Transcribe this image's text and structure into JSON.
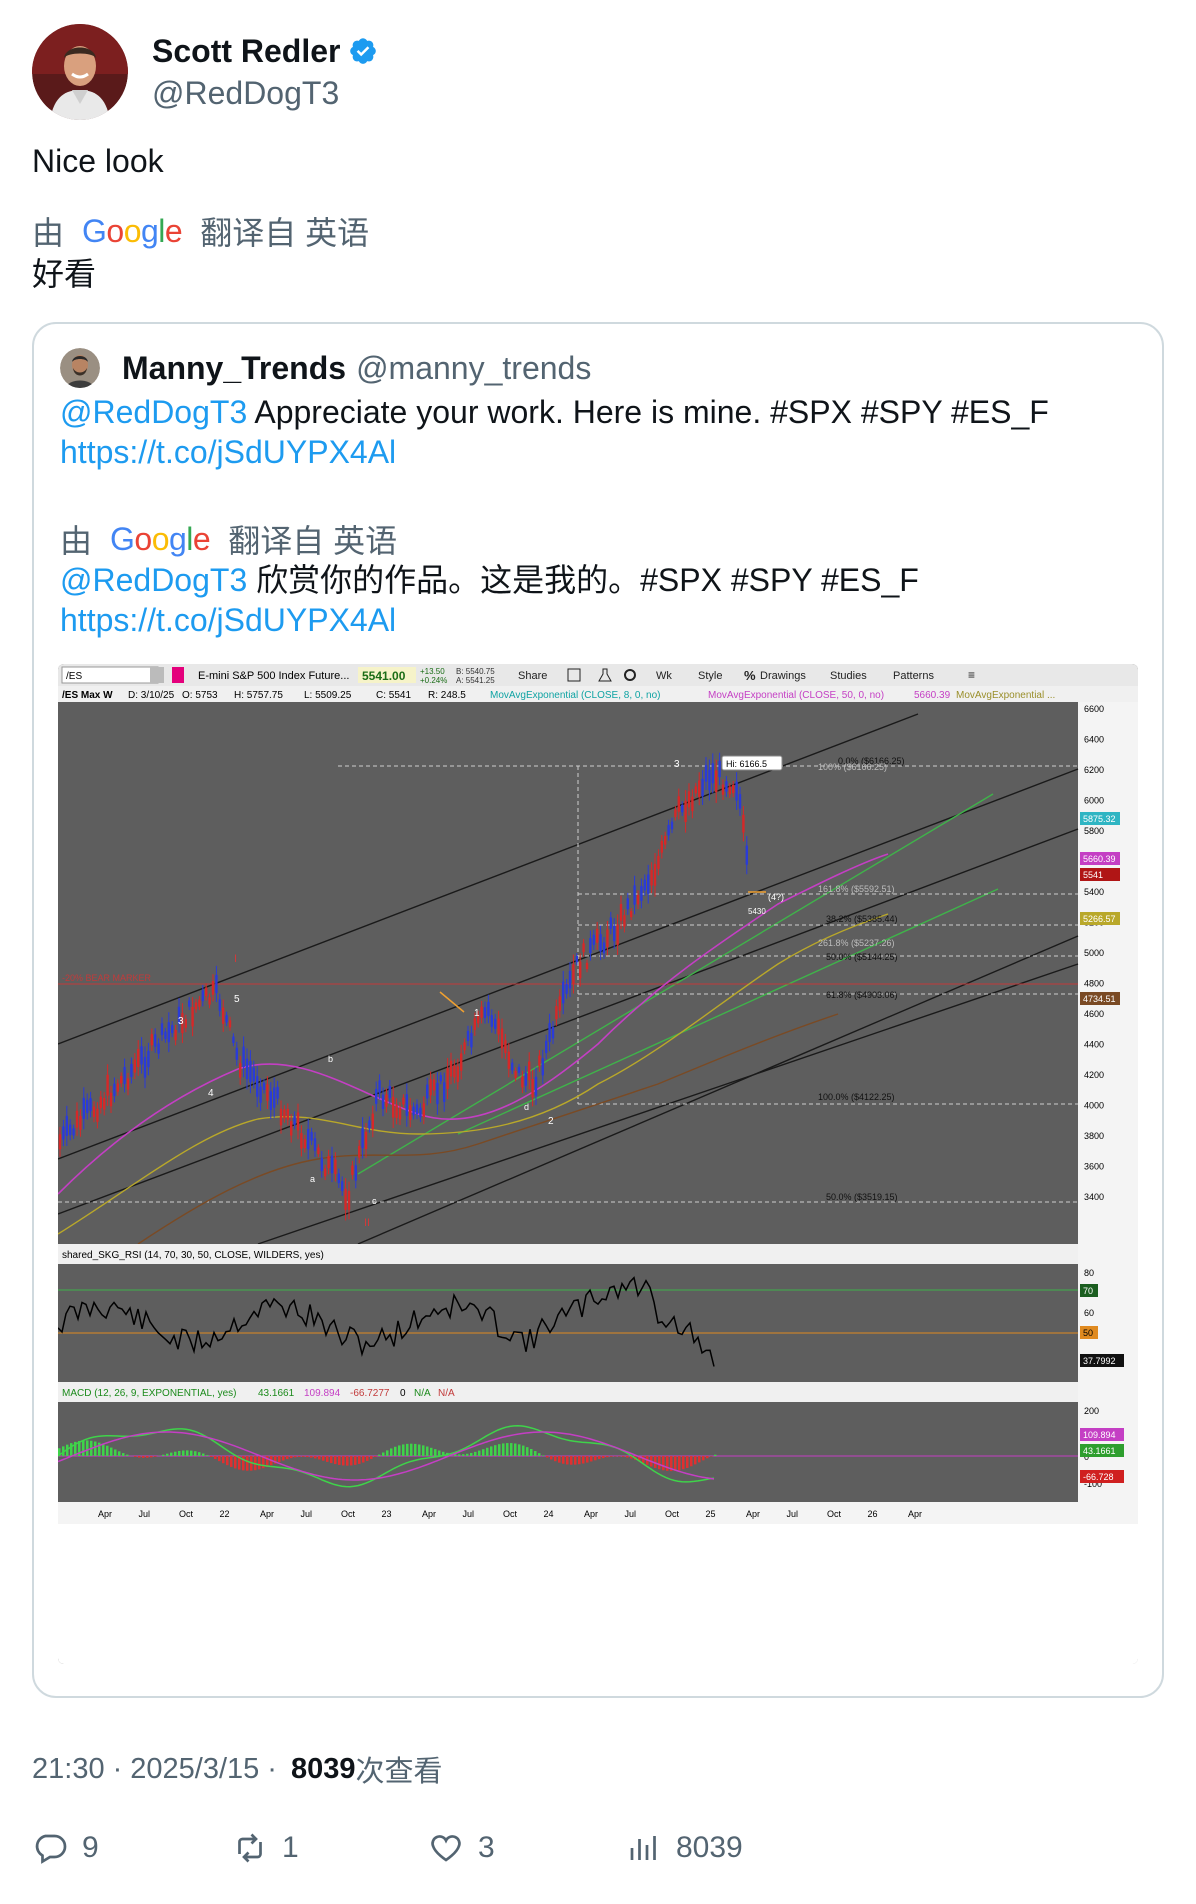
{
  "author": {
    "name": "Scott Redler",
    "handle": "@RedDogT3"
  },
  "tweet": {
    "text": "Nice look",
    "translate_prefix": "由",
    "translate_google": "Google",
    "translate_suffix": "翻译自 英语",
    "translated_text": "好看"
  },
  "quote": {
    "name": "Manny_Trends",
    "handle": "@manny_trends",
    "mention": "@RedDogT3",
    "text_rest": " Appreciate your work. Here is mine. #SPX #SPY #ES_F",
    "link": "https://t.co/jSdUYPX4Al",
    "translate_prefix": "由",
    "translate_google": "Google",
    "translate_suffix": "翻译自 英语",
    "translated_mention": "@RedDogT3",
    "translated_rest": " 欣赏你的作品。这是我的。#SPX #SPY #ES_F",
    "translated_link": "https://t.co/jSdUYPX4Al"
  },
  "chart_image": {
    "toolbar": {
      "symbol": "/ES",
      "title": "E-mini S&P 500 Index Future...",
      "price": "5541.00",
      "change": "+13.50",
      "change_pct": "+0.24%",
      "bid": "B: 5540.75",
      "ask": "A: 5541.25",
      "share": "Share",
      "wk": "Wk",
      "style": "Style",
      "drawings": "Drawings",
      "studies": "Studies",
      "patterns": "Patterns"
    },
    "info_bar": {
      "title": "/ES Max W",
      "date": "D: 3/10/25",
      "open": "O: 5753",
      "high": "H: 5757.75",
      "low": "L: 5509.25",
      "close": "C: 5541",
      "range": "R: 248.5",
      "ema8": "MovAvgExponential (CLOSE, 8, 0, no)",
      "ema50": "MovAvgExponential (CLOSE, 50, 0, no)",
      "ema50_val": "5660.39",
      "ema_more": "MovAvgExponential ..."
    },
    "price_axis": [
      "6600",
      "6400",
      "6200",
      "6000",
      "5800",
      "5600",
      "5400",
      "5200",
      "5000",
      "4800",
      "4600",
      "4400",
      "4200",
      "4000",
      "3800",
      "3600",
      "3400"
    ],
    "price_badges": [
      {
        "text": "5875.32",
        "color": "#2fb5c3"
      },
      {
        "text": "5660.39",
        "color": "#c43fc4"
      },
      {
        "text": "5541",
        "color": "#b01515"
      },
      {
        "text": "5266.57",
        "color": "#b9a82a"
      },
      {
        "text": "4734.51",
        "color": "#7a4a24"
      }
    ],
    "fib_labels": [
      "0.0% ($6166.25)",
      "100% ($6166.25)",
      "161.8% ($5592.51)",
      "38.2% ($5385.44)",
      "261.8% ($5237.26)",
      "50.0% ($5144.25)",
      "61.8% ($4903.06)",
      "100.0% ($4122.25)",
      "50.0% ($3519.15)"
    ],
    "annotations": {
      "hi": "Hi: 6166.5",
      "bear": "-20% BEAR MARKER",
      "wave_i": "I",
      "wave_ii": "II",
      "w1": "1",
      "w2": "2",
      "w3": "3",
      "w3b": "3",
      "w4": "4",
      "w5": "5",
      "w4q": "(4?)",
      "w_b": "b",
      "w_a": "a",
      "w_c": "c",
      "w_d": "d",
      "small_5430": "5430"
    },
    "rsi": {
      "label": "shared_SKG_RSI (14, 70, 30, 50, CLOSE, WILDERS, yes)",
      "axis": [
        "80",
        "60"
      ],
      "badge_70": "70",
      "badge_50": "50",
      "badge_val": "37.7992"
    },
    "macd": {
      "label": "MACD (12, 26, 9, EXPONENTIAL, yes)",
      "v1": "43.1661",
      "v2": "109.894",
      "v3": "-66.7277",
      "v4": "0",
      "v5": "N/A",
      "v6": "N/A",
      "axis": [
        "200",
        "0",
        "-100"
      ],
      "badge1": "109.894",
      "badge2": "43.1661",
      "badge3": "-66.728"
    },
    "time_axis": [
      "Apr",
      "Jul",
      "Oct",
      "22",
      "Apr",
      "Jul",
      "Oct",
      "23",
      "Apr",
      "Jul",
      "Oct",
      "24",
      "Apr",
      "Jul",
      "Oct",
      "25",
      "Apr",
      "Jul",
      "Oct",
      "26",
      "Apr"
    ]
  },
  "footer": {
    "time": "21:30",
    "sep1": "·",
    "date": "2025/3/15",
    "sep2": "·",
    "views": "8039",
    "views_label": "次查看"
  },
  "actions": {
    "replies": "9",
    "retweets": "1",
    "likes": "3",
    "views": "8039"
  },
  "colors": {
    "link": "#1d9bf0",
    "secondary_text": "#536471",
    "verified": "#1d9bf0",
    "border": "#cfd9de",
    "chart_bg": "#4d4d4d"
  }
}
